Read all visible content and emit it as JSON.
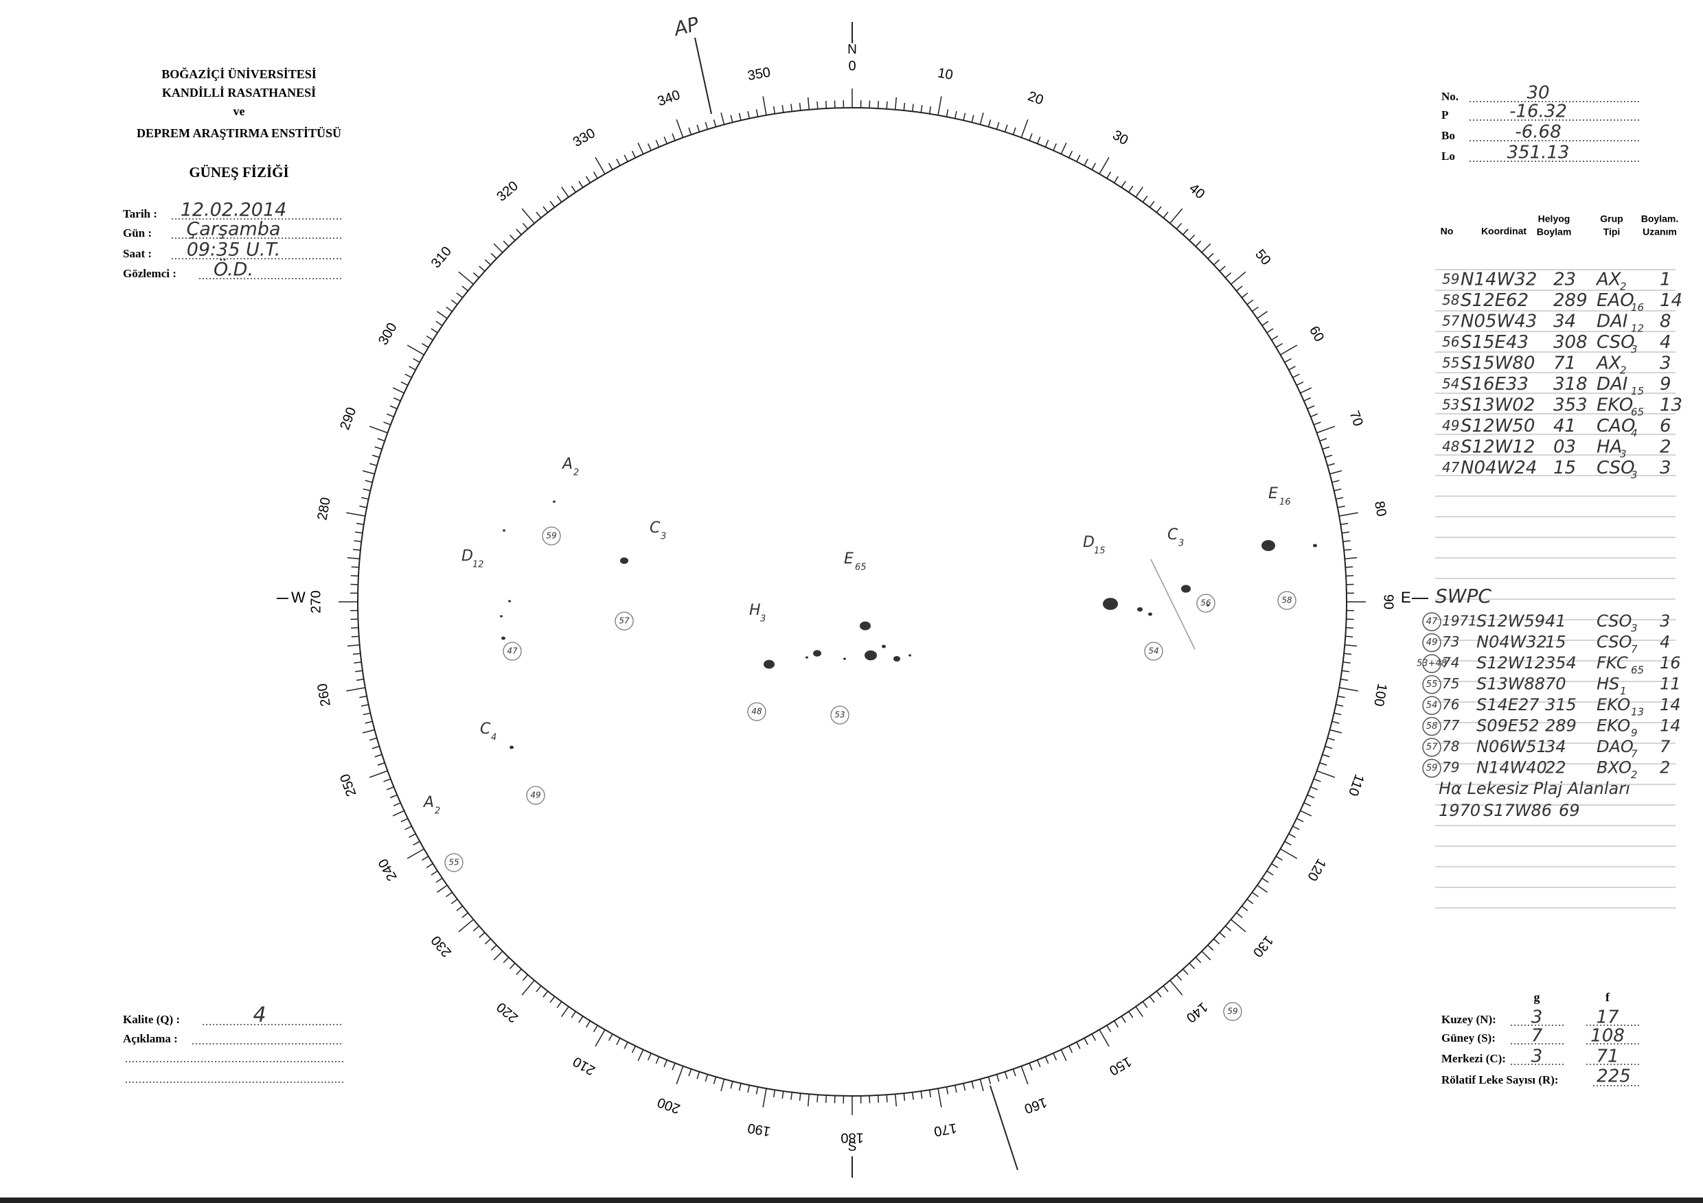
{
  "header": {
    "lines": [
      "BOĞAZİÇİ ÜNİVERSİTESİ",
      "KANDİLLİ RASATHANESİ",
      "ve",
      "DEPREM ARAŞTIRMA ENSTİTÜSÜ"
    ],
    "subtitle": "GÜNEŞ FİZİĞİ"
  },
  "fields": [
    {
      "label": "Tarih :",
      "value": "12.02.2014"
    },
    {
      "label": "Gün :",
      "value": "Çarşamba"
    },
    {
      "label": "Saat :",
      "value": "09:35 U.T."
    },
    {
      "label": "Gözlemci :",
      "value": "Ö.D."
    }
  ],
  "params": [
    {
      "label": "No.",
      "value": "30"
    },
    {
      "label": "P",
      "value": "-16.32"
    },
    {
      "label": "Bo",
      "value": "-6.68"
    },
    {
      "label": "Lo",
      "value": "351.13"
    }
  ],
  "table": {
    "columns": [
      [
        "No"
      ],
      [
        "Koordinat"
      ],
      [
        "Helyog",
        "Boylam"
      ],
      [
        "Grup",
        "Tipi"
      ],
      [
        "Boylam.",
        "Uzanım"
      ]
    ],
    "rows": [
      [
        "59",
        "N14W32",
        "23",
        "AX",
        "2",
        "1"
      ],
      [
        "58",
        "S12E62",
        "289",
        "EAO",
        "16",
        "14"
      ],
      [
        "57",
        "N05W43",
        "34",
        "DAI",
        "12",
        "8"
      ],
      [
        "56",
        "S15E43",
        "308",
        "CSO",
        "3",
        "4"
      ],
      [
        "55",
        "S15W80",
        "71",
        "AX",
        "2",
        "3"
      ],
      [
        "54",
        "S16E33",
        "318",
        "DAI",
        "15",
        "9"
      ],
      [
        "53",
        "S13W02",
        "353",
        "EKO",
        "65",
        "13"
      ],
      [
        "49",
        "S12W50",
        "41",
        "CAO",
        "4",
        "6"
      ],
      [
        "48",
        "S12W12",
        "03",
        "HA",
        "3",
        "2"
      ],
      [
        "47",
        "N04W24",
        "15",
        "CSO",
        "3",
        "3"
      ]
    ]
  },
  "swpc": {
    "title": "SWPC",
    "rows": [
      [
        "47",
        "1971",
        "S12W59",
        "41",
        "CSO",
        "3",
        "3"
      ],
      [
        "49",
        "73",
        "N04W32",
        "15",
        "CSO",
        "7",
        "4"
      ],
      [
        "53+48",
        "74",
        "S12W12",
        "354",
        "FKC",
        "65",
        "16"
      ],
      [
        "55",
        "75",
        "S13W88",
        "70",
        "HS",
        "1",
        "11"
      ],
      [
        "54",
        "76",
        "S14E27",
        "315",
        "EKO",
        "13",
        "14"
      ],
      [
        "58",
        "77",
        "S09E52",
        "289",
        "EKO",
        "9",
        "14"
      ],
      [
        "57",
        "78",
        "N06W51",
        "34",
        "DAO",
        "7",
        "7"
      ],
      [
        "59",
        "79",
        "N14W40",
        "22",
        "BXO",
        "2",
        "2"
      ]
    ],
    "note": "Hα Lekesiz Plaj Alanları",
    "extra": [
      "1970",
      "S17W86",
      "69"
    ]
  },
  "dial": {
    "labels": [
      0,
      10,
      20,
      30,
      40,
      50,
      60,
      70,
      80,
      90,
      100,
      110,
      120,
      130,
      140,
      150,
      160,
      170,
      180,
      190,
      200,
      210,
      220,
      230,
      240,
      250,
      260,
      270,
      280,
      290,
      300,
      310,
      320,
      330,
      340,
      350
    ],
    "north": "N",
    "south": "S",
    "east": "E",
    "west": "W",
    "ap": "AP"
  },
  "disk": {
    "groups": [
      {
        "label": "A",
        "sub": "2"
      },
      {
        "label": "C",
        "sub": "3"
      },
      {
        "label": "D",
        "sub": "12"
      },
      {
        "label": "E",
        "sub": "65"
      },
      {
        "label": "H",
        "sub": "3"
      },
      {
        "label": "D",
        "sub": "15"
      },
      {
        "label": "C",
        "sub": "3"
      },
      {
        "label": "E",
        "sub": "16"
      },
      {
        "label": "C",
        "sub": "4"
      },
      {
        "label": "A",
        "sub": "2"
      }
    ],
    "circled": [
      "59",
      "57",
      "47",
      "48",
      "53",
      "54",
      "56",
      "58",
      "49",
      "55",
      "59"
    ]
  },
  "quality": {
    "label": "Kalite (Q) :",
    "value": "4",
    "comment": "Açıklama :"
  },
  "summary": {
    "cols": [
      "g",
      "f"
    ],
    "rows": [
      {
        "label": "Kuzey (N):",
        "g": "3",
        "f": "17"
      },
      {
        "label": "Güney (S):",
        "g": "7",
        "f": "108"
      },
      {
        "label": "Merkezi (C):",
        "g": "3",
        "f": "71"
      }
    ],
    "rel": {
      "label": "Rölatif Leke Sayısı (R):",
      "value": "225"
    }
  }
}
